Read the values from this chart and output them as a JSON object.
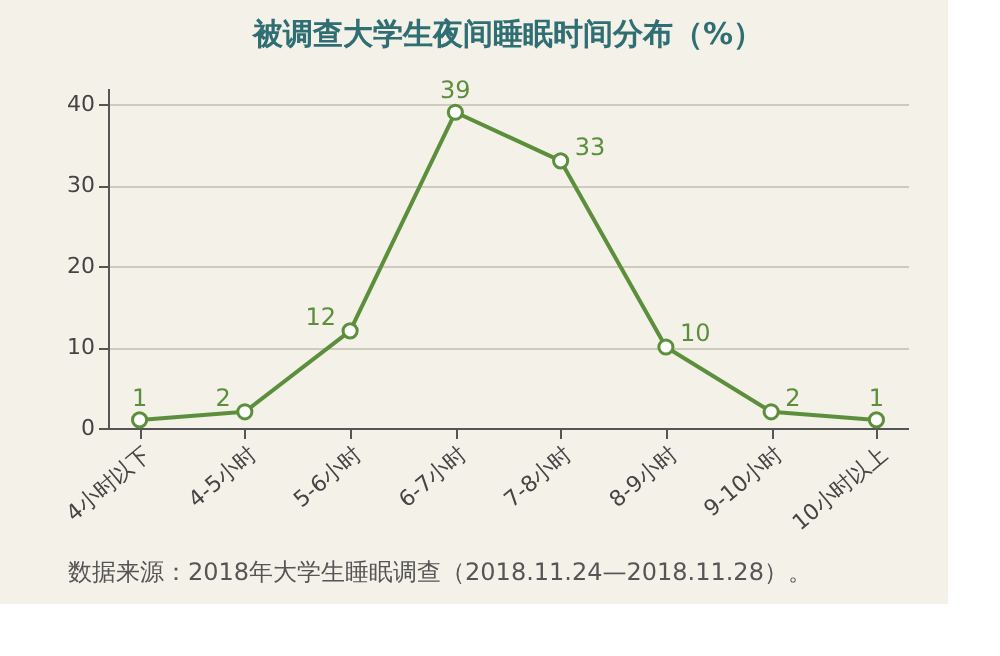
{
  "chart_data": {
    "type": "line",
    "title": "被调查大学生夜间睡眠时间分布（%）",
    "categories": [
      "4小时以下",
      "4-5小时",
      "5-6小时",
      "6-7小时",
      "7-8小时",
      "8-9小时",
      "9-10小时",
      "10小时以上"
    ],
    "series": [
      {
        "color": "#5b8f3c",
        "values": [
          1,
          2,
          12,
          39,
          33,
          10,
          2,
          1
        ]
      }
    ],
    "ylim": [
      0,
      42
    ],
    "yticks": [
      0,
      10,
      20,
      30,
      40
    ],
    "grid": "y",
    "marker": "circle",
    "line_style": "solid",
    "data_labels": true,
    "annotations": [
      "数据来源：2018年大学生睡眠调查（2018.11.24—2018.11.28）。"
    ]
  }
}
